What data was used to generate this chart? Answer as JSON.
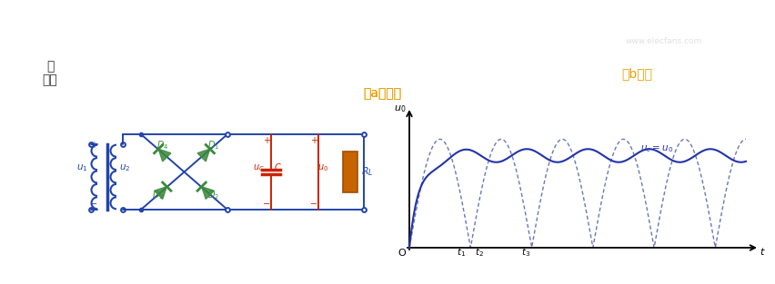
{
  "bg_color": "#ffffff",
  "label_a": "（a）电路",
  "label_b": "（b）波",
  "label_tu": "图",
  "label_xingtu": "形图",
  "text_color_orange": "#e8a000",
  "text_color_black": "#333333",
  "circuit_color": "#2244aa",
  "diode_color": "#3a8a3a",
  "cap_color": "#cc2200",
  "resistor_color": "#c86400",
  "wave_color": "#2233aa",
  "dashed_color": "#4455aa",
  "watermark": "www.elecfans.com"
}
